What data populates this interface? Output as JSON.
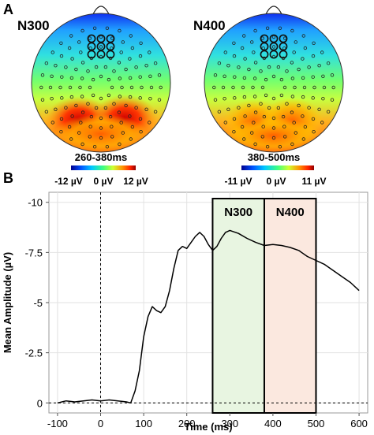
{
  "panels": {
    "a_label": "A",
    "b_label": "B"
  },
  "topomaps": [
    {
      "title": "N300",
      "window": "260-380ms",
      "colorbar": {
        "min_label": "-12 µV",
        "mid_label": "0 µV",
        "max_label": "12 µV"
      }
    },
    {
      "title": "N400",
      "window": "380-500ms",
      "colorbar": {
        "min_label": "-11 µV",
        "mid_label": "0 µV",
        "max_label": "11 µV"
      }
    }
  ],
  "chart_data": {
    "type": "line",
    "xlabel": "Time (ms)",
    "ylabel": "Mean Amplitude (µV)",
    "xlim": [
      -120,
      620
    ],
    "ylim": [
      0.5,
      -10.5
    ],
    "y_inverted": true,
    "x_ticks": [
      -100,
      0,
      100,
      200,
      300,
      400,
      500,
      600
    ],
    "y_ticks": [
      0,
      -2.5,
      -5,
      -7.5,
      -10
    ],
    "y_tick_labels": [
      "0",
      "-2.5",
      "-5",
      "-7.5",
      "-10"
    ],
    "grid": true,
    "zero_lines": {
      "x": 0,
      "y": 0,
      "style": "dashed"
    },
    "windows": [
      {
        "label": "N300",
        "start": 260,
        "end": 380,
        "color": "#e8f5e1"
      },
      {
        "label": "N400",
        "start": 380,
        "end": 500,
        "color": "#fbe8df"
      }
    ],
    "series": [
      {
        "color": "#000000",
        "x": [
          -100,
          -80,
          -60,
          -40,
          -20,
          0,
          20,
          40,
          60,
          70,
          80,
          90,
          100,
          110,
          120,
          130,
          140,
          150,
          160,
          170,
          180,
          190,
          200,
          210,
          220,
          230,
          240,
          250,
          260,
          270,
          280,
          290,
          300,
          320,
          340,
          360,
          380,
          400,
          420,
          440,
          460,
          480,
          500,
          520,
          540,
          560,
          580,
          600
        ],
        "y": [
          0,
          -0.1,
          -0.05,
          -0.1,
          -0.15,
          -0.1,
          -0.15,
          -0.1,
          -0.05,
          0,
          -0.6,
          -1.6,
          -3.3,
          -4.3,
          -4.8,
          -4.6,
          -4.5,
          -4.8,
          -5.6,
          -6.7,
          -7.6,
          -7.8,
          -7.7,
          -8.0,
          -8.3,
          -8.5,
          -8.3,
          -7.9,
          -7.6,
          -7.8,
          -8.2,
          -8.5,
          -8.6,
          -8.45,
          -8.2,
          -8.0,
          -7.85,
          -7.9,
          -7.85,
          -7.75,
          -7.6,
          -7.3,
          -7.1,
          -6.9,
          -6.6,
          -6.3,
          -6.0,
          -5.6
        ]
      }
    ]
  }
}
